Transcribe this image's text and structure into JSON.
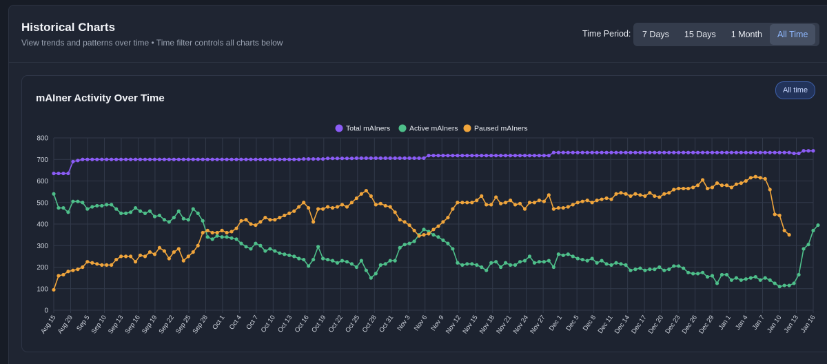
{
  "header": {
    "title": "Historical Charts",
    "subtitle": "View trends and patterns over time • Time filter controls all charts below",
    "period_label": "Time Period:",
    "periods": [
      "7 Days",
      "15 Days",
      "1 Month",
      "All Time"
    ],
    "active_period": "All Time"
  },
  "card": {
    "title": "mAIner Activity Over Time",
    "range_badge": "All time"
  },
  "colors": {
    "total": "#8b5cf6",
    "active": "#4ebf8a",
    "paused": "#f0a53c",
    "grid": "#323a4a",
    "tick": "#cfd4dd"
  },
  "chart_data": {
    "type": "line",
    "legend_position": "top-center",
    "grid": true,
    "ylim": [
      0,
      800
    ],
    "yticks": [
      0,
      100,
      200,
      300,
      400,
      500,
      600,
      700,
      800
    ],
    "x_labels": [
      "Aug 15",
      "Aug 29",
      "Sep 5",
      "Sep 10",
      "Sep 13",
      "Sep 16",
      "Sep 19",
      "Sep 22",
      "Sep 25",
      "Sep 28",
      "Oct 1",
      "Oct 4",
      "Oct 7",
      "Oct 10",
      "Oct 13",
      "Oct 16",
      "Oct 19",
      "Oct 22",
      "Oct 25",
      "Oct 28",
      "Oct 31",
      "Nov 3",
      "Nov 6",
      "Nov 9",
      "Nov 12",
      "Nov 15",
      "Nov 18",
      "Nov 21",
      "Nov 24",
      "Nov 27",
      "Dec 1",
      "Dec 5",
      "Dec 8",
      "Dec 11",
      "Dec 14",
      "Dec 17",
      "Dec 20",
      "Dec 23",
      "Dec 26",
      "Dec 29",
      "Jan 1",
      "Jan 4",
      "Jan 7",
      "Jan 10",
      "Jan 13",
      "Jan 16"
    ],
    "series": [
      {
        "name": "Total mAIners",
        "key": "total",
        "values": [
          635,
          635,
          635,
          635,
          690,
          695,
          700,
          700,
          700,
          700,
          700,
          700,
          700,
          700,
          700,
          700,
          700,
          700,
          700,
          700,
          700,
          700,
          700,
          700,
          700,
          700,
          700,
          700,
          700,
          700,
          700,
          700,
          700,
          700,
          700,
          700,
          700,
          700,
          700,
          700,
          700,
          700,
          700,
          700,
          700,
          700,
          700,
          700,
          700,
          700,
          700,
          700,
          702,
          702,
          702,
          702,
          702,
          705,
          705,
          705,
          705,
          705,
          705,
          706,
          706,
          706,
          706,
          706,
          706,
          706,
          706,
          706,
          706,
          706,
          706,
          706,
          706,
          706,
          718,
          718,
          718,
          718,
          718,
          718,
          718,
          718,
          718,
          718,
          718,
          718,
          718,
          718,
          718,
          718,
          718,
          718,
          718,
          718,
          718,
          718,
          718,
          718,
          718,
          718,
          732,
          732,
          732,
          732,
          732,
          732,
          732,
          732,
          732,
          732,
          732,
          732,
          732,
          732,
          732,
          732,
          732,
          732,
          732,
          732,
          732,
          732,
          732,
          732,
          732,
          732,
          732,
          732,
          732,
          732,
          732,
          732,
          732,
          732,
          732,
          732,
          732,
          732,
          732,
          732,
          732,
          732,
          732,
          732,
          732,
          732,
          732,
          732,
          732,
          732,
          728,
          728,
          740,
          740,
          740
        ]
      },
      {
        "name": "Active mAIners",
        "key": "active",
        "values": [
          540,
          475,
          475,
          455,
          505,
          505,
          500,
          470,
          480,
          485,
          485,
          490,
          490,
          470,
          450,
          450,
          455,
          475,
          460,
          450,
          460,
          435,
          440,
          420,
          410,
          430,
          460,
          425,
          420,
          470,
          450,
          415,
          340,
          330,
          345,
          340,
          340,
          335,
          330,
          310,
          295,
          285,
          310,
          300,
          275,
          285,
          275,
          265,
          260,
          255,
          250,
          240,
          235,
          205,
          235,
          295,
          240,
          235,
          230,
          220,
          230,
          225,
          215,
          200,
          230,
          185,
          150,
          170,
          210,
          215,
          230,
          230,
          290,
          305,
          310,
          320,
          350,
          375,
          365,
          350,
          340,
          325,
          310,
          285,
          220,
          210,
          215,
          215,
          210,
          200,
          185,
          220,
          225,
          200,
          220,
          210,
          210,
          225,
          230,
          250,
          220,
          225,
          225,
          230,
          200,
          260,
          255,
          260,
          250,
          240,
          235,
          230,
          240,
          220,
          230,
          215,
          210,
          220,
          215,
          210,
          185,
          190,
          195,
          185,
          190,
          190,
          200,
          185,
          190,
          205,
          205,
          195,
          175,
          170,
          170,
          175,
          155,
          160,
          125,
          165,
          165,
          140,
          150,
          140,
          145,
          150,
          155,
          140,
          150,
          140,
          125,
          110,
          115,
          115,
          125,
          165,
          285,
          305,
          370,
          395
        ]
      },
      {
        "name": "Paused mAIners",
        "key": "paused",
        "values": [
          95,
          160,
          165,
          180,
          185,
          190,
          200,
          225,
          220,
          215,
          210,
          210,
          210,
          235,
          250,
          250,
          250,
          225,
          255,
          250,
          270,
          260,
          290,
          275,
          240,
          270,
          285,
          230,
          250,
          270,
          300,
          360,
          370,
          360,
          360,
          370,
          360,
          365,
          380,
          415,
          420,
          400,
          395,
          410,
          430,
          420,
          420,
          430,
          440,
          450,
          460,
          480,
          500,
          475,
          410,
          470,
          470,
          480,
          475,
          480,
          490,
          480,
          500,
          520,
          540,
          555,
          530,
          490,
          495,
          485,
          480,
          455,
          420,
          410,
          395,
          370,
          345,
          350,
          355,
          375,
          390,
          410,
          430,
          470,
          500,
          500,
          500,
          500,
          510,
          530,
          490,
          490,
          525,
          495,
          500,
          510,
          490,
          495,
          470,
          500,
          500,
          510,
          505,
          535,
          470,
          475,
          475,
          480,
          490,
          500,
          505,
          510,
          500,
          510,
          515,
          520,
          515,
          540,
          545,
          540,
          530,
          540,
          535,
          530,
          545,
          530,
          525,
          540,
          545,
          560,
          565,
          565,
          565,
          570,
          580,
          605,
          565,
          570,
          590,
          580,
          580,
          570,
          585,
          590,
          600,
          615,
          620,
          615,
          610,
          560,
          445,
          440,
          370,
          350
        ]
      }
    ]
  }
}
